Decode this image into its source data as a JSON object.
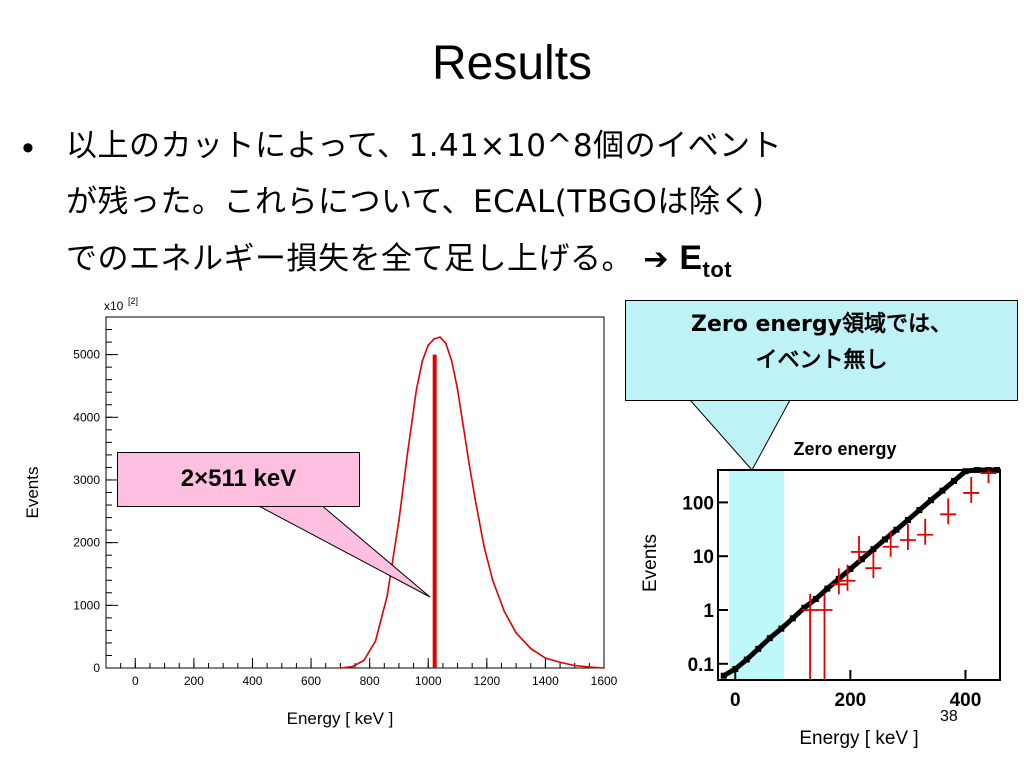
{
  "slide": {
    "title": "Results",
    "bullet_marker": "•",
    "bullet_line1": "以上のカットによって、1.41×10^8個のイベント",
    "bullet_line2": "が残った。これらについて、ECAL(TBGOは除く)",
    "bullet_line3": "でのエネルギー損失を全て足し上げる。",
    "arrow_glyph": "➔",
    "etot_main": "E",
    "etot_sub": "tot",
    "page_number": "38"
  },
  "annotations": {
    "peak_callout": "2×511 keV",
    "zero_callout_line1": "Zero energy領域では、",
    "zero_callout_line2": "イベント無し",
    "zero_energy_label": "Zero energy"
  },
  "colors": {
    "histogram": "#e00000",
    "peak_line": "#e00000",
    "points": "#000000",
    "callout_pink": "#ffbfe0",
    "callout_cyan": "#bff2f6",
    "zero_band": "#bff8fa"
  },
  "chart_data": [
    {
      "type": "line",
      "xlabel": "Energy [ keV ]",
      "ylabel": "Events",
      "y_multiplier_label": "x10",
      "y_multiplier_exp": "[2]",
      "xlim": [
        -100,
        1600
      ],
      "ylim": [
        0,
        5600
      ],
      "x_ticks": [
        0,
        200,
        400,
        600,
        800,
        1000,
        1200,
        1400,
        1600
      ],
      "y_ticks": [
        0,
        1000,
        2000,
        3000,
        4000,
        5000
      ],
      "grid": false,
      "series": [
        {
          "x": [
            700,
            740,
            780,
            820,
            860,
            900,
            930,
            960,
            980,
            1000,
            1020,
            1040,
            1060,
            1080,
            1100,
            1120,
            1140,
            1160,
            1190,
            1220,
            1260,
            1300,
            1350,
            1400,
            1450,
            1500,
            1550,
            1600
          ],
          "y": [
            0,
            20,
            120,
            430,
            1150,
            2350,
            3450,
            4450,
            4900,
            5150,
            5250,
            5280,
            5180,
            4900,
            4450,
            3850,
            3250,
            2700,
            1950,
            1400,
            900,
            560,
            310,
            160,
            90,
            40,
            15,
            0
          ]
        }
      ],
      "marker_line_x": 1022
    },
    {
      "type": "scatter",
      "xlabel": "Energy [ keV ]",
      "ylabel": "Events",
      "y_scale": "log",
      "xlim": [
        -30,
        460
      ],
      "ylim": [
        0.05,
        400
      ],
      "x_ticks": [
        0,
        200,
        400
      ],
      "y_ticks": [
        0.1,
        1,
        10,
        100
      ],
      "zero_energy_band": [
        0,
        85
      ],
      "series": [
        {
          "name": "black",
          "x": [
            -20,
            0,
            20,
            40,
            60,
            80,
            100,
            120,
            140,
            160,
            180,
            200,
            220,
            240,
            260,
            280,
            300,
            320,
            340,
            360,
            380,
            400,
            420,
            440,
            455
          ],
          "y": [
            0.06,
            0.08,
            0.12,
            0.19,
            0.3,
            0.45,
            0.7,
            1.1,
            1.6,
            2.5,
            3.8,
            5.8,
            8.8,
            13.5,
            20.5,
            31,
            47,
            72,
            110,
            165,
            250,
            380,
            400,
            400,
            400
          ]
        },
        {
          "name": "red",
          "x": [
            130,
            155,
            180,
            195,
            215,
            240,
            270,
            300,
            330,
            370,
            410,
            440
          ],
          "y": [
            1,
            1,
            3,
            3.5,
            12,
            6,
            15,
            20,
            25,
            60,
            150,
            350
          ]
        }
      ]
    }
  ]
}
